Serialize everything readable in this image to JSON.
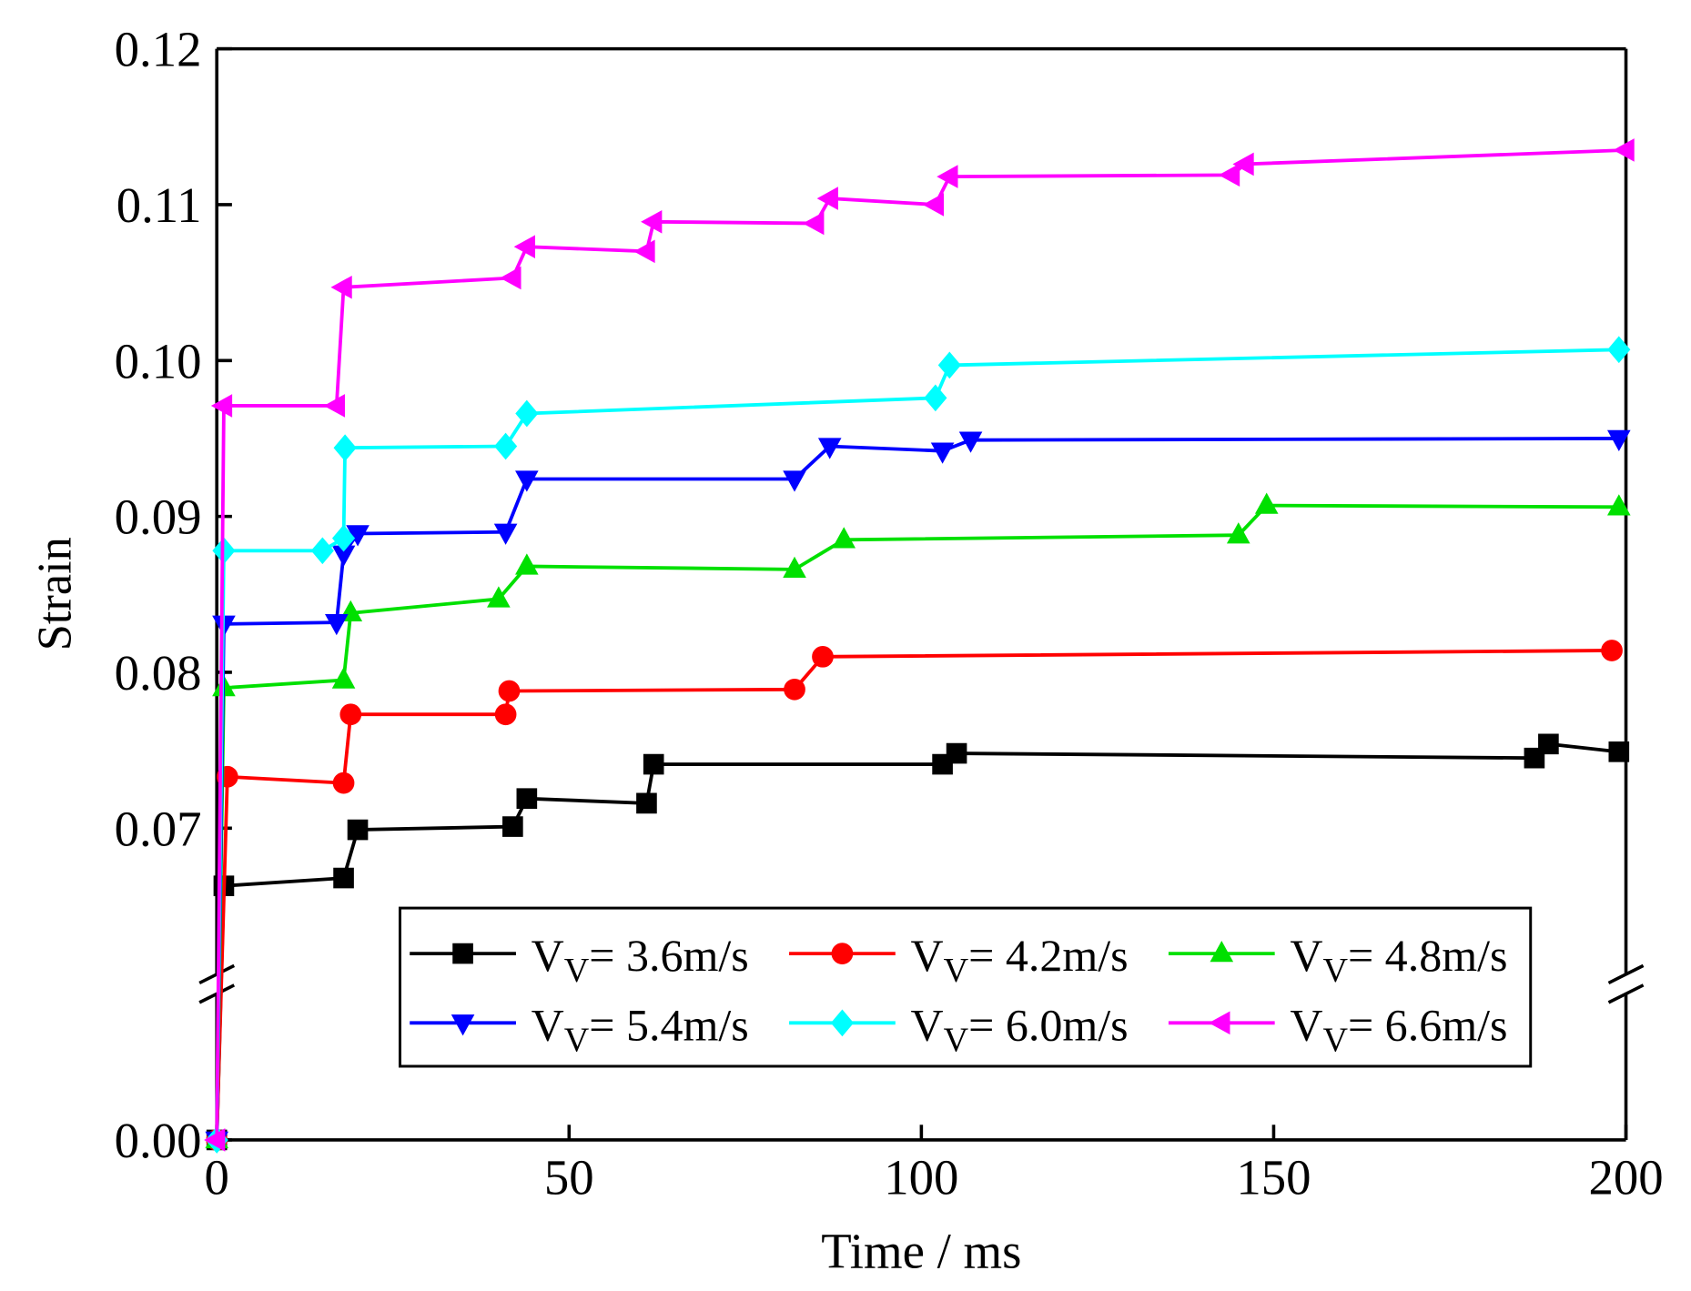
{
  "chart_data": {
    "type": "line",
    "xlabel": "Time / ms",
    "ylabel": "Strain",
    "xlim": [
      0,
      200
    ],
    "xticks": [
      0,
      50,
      100,
      150,
      200
    ],
    "ylim": [
      0,
      0.12
    ],
    "ybreak": [
      0.01,
      0.06
    ],
    "yticks": [
      {
        "value": 0,
        "label": "0.00"
      },
      0.07,
      0.08,
      0.09,
      {
        "value": 0.1,
        "label": "0.10"
      },
      0.11,
      0.12
    ],
    "series": [
      {
        "name": "VV= 3.6m/s",
        "color": "#000000",
        "marker": "square",
        "x": [
          0,
          1,
          18,
          20,
          42,
          44,
          61,
          62,
          103,
          105,
          187,
          189,
          199
        ],
        "values": [
          0,
          0.0663,
          0.0668,
          0.0699,
          0.0701,
          0.0719,
          0.0716,
          0.0741,
          0.0741,
          0.0748,
          0.0745,
          0.0754,
          0.0749
        ]
      },
      {
        "name": "VV= 4.2m/s",
        "color": "#ff0000",
        "marker": "circle",
        "x": [
          0,
          1.5,
          18,
          19,
          41,
          41.5,
          82,
          86,
          198
        ],
        "values": [
          0,
          0.0733,
          0.0729,
          0.0773,
          0.0773,
          0.0788,
          0.0789,
          0.081,
          0.0814
        ]
      },
      {
        "name": "VV= 4.8m/s",
        "color": "#00e000",
        "marker": "triangle-up",
        "x": [
          0,
          1,
          18,
          19,
          40,
          44,
          82,
          89,
          145,
          149,
          199
        ],
        "values": [
          0,
          0.079,
          0.0795,
          0.0838,
          0.0847,
          0.0868,
          0.0866,
          0.0885,
          0.0888,
          0.0907,
          0.0906
        ]
      },
      {
        "name": "VV= 5.4m/s",
        "color": "#0000ff",
        "marker": "triangle-down",
        "x": [
          0,
          1,
          17,
          18,
          20,
          41,
          44,
          82,
          87,
          103,
          107,
          199
        ],
        "values": [
          0,
          0.0831,
          0.0832,
          0.0876,
          0.0889,
          0.089,
          0.0924,
          0.0924,
          0.0945,
          0.0942,
          0.0949,
          0.095
        ]
      },
      {
        "name": "VV= 6.0m/s",
        "color": "#00ffff",
        "marker": "diamond",
        "x": [
          0,
          1,
          15,
          18,
          18.2,
          41,
          44,
          102,
          104,
          199
        ],
        "values": [
          0,
          0.0878,
          0.0878,
          0.0886,
          0.0944,
          0.0945,
          0.0966,
          0.0976,
          0.0997,
          0.1007
        ]
      },
      {
        "name": "VV= 6.6m/s",
        "color": "#ff00ff",
        "marker": "triangle-left",
        "x": [
          0,
          1,
          17,
          18,
          42,
          44,
          61,
          62,
          85,
          87,
          102,
          104,
          144,
          146,
          200
        ],
        "values": [
          0,
          0.0971,
          0.0971,
          0.1047,
          0.1053,
          0.1073,
          0.107,
          0.1089,
          0.1088,
          0.1104,
          0.11,
          0.1118,
          0.1119,
          0.1126,
          0.1135
        ]
      }
    ]
  }
}
